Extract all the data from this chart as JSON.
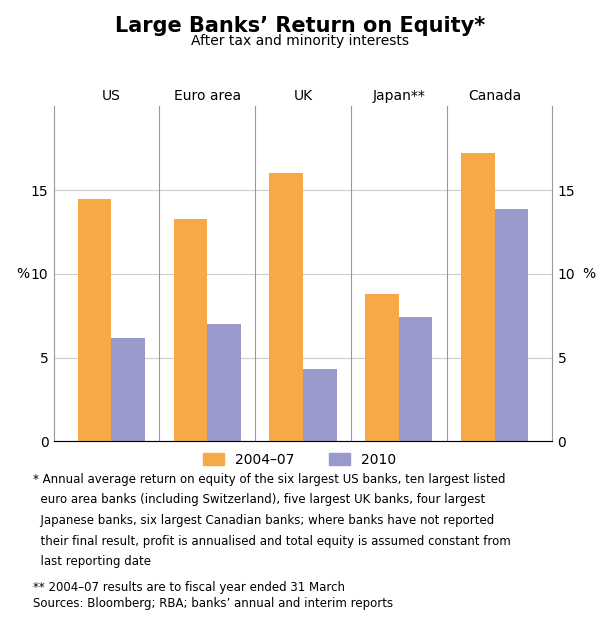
{
  "title": "Large Banks’ Return on Equity*",
  "subtitle": "After tax and minority interests",
  "categories": [
    "US",
    "Euro area",
    "UK",
    "Japan**",
    "Canada"
  ],
  "values_2004_07": [
    14.5,
    13.3,
    16.0,
    8.8,
    17.2
  ],
  "values_2010": [
    6.2,
    7.0,
    4.3,
    7.4,
    13.9
  ],
  "color_2004_07": "#F5A947",
  "color_2010": "#9999CC",
  "ylim": [
    0,
    20
  ],
  "yticks": [
    0,
    5,
    10,
    15
  ],
  "ylabel_left": "%",
  "ylabel_right": "%",
  "legend_labels": [
    "2004–07",
    "2010"
  ],
  "footnote_line1": "* Annual average return on equity of the six largest US banks, ten largest listed",
  "footnote_line2": "  euro area banks (including Switzerland), five largest UK banks, four largest",
  "footnote_line3": "  Japanese banks, six largest Canadian banks; where banks have not reported",
  "footnote_line4": "  their final result, profit is annualised and total equity is assumed constant from",
  "footnote_line5": "  last reporting date",
  "footnote_line6": "** 2004–07 results are to fiscal year ended 31 March",
  "footnote_line7": "Sources: Bloomberg; RBA; banks’ annual and interim reports",
  "bar_width": 0.35,
  "bg_color": "#FFFFFF",
  "grid_color": "#CCCCCC",
  "divider_color": "#999999",
  "spine_color": "#999999",
  "title_fontsize": 15,
  "subtitle_fontsize": 10,
  "label_fontsize": 10,
  "tick_fontsize": 10,
  "footnote_fontsize": 8.5
}
